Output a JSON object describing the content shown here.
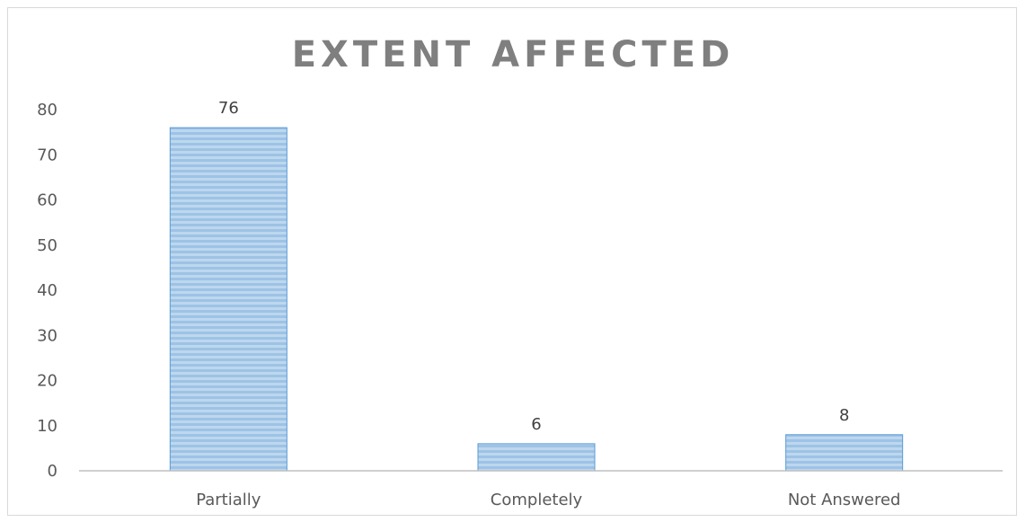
{
  "chart_data": {
    "type": "bar",
    "title": "EXTENT AFFECTED",
    "categories": [
      "Partially",
      "Completely",
      "Not Answered"
    ],
    "values": [
      76,
      6,
      8
    ],
    "data_labels": [
      "76",
      "6",
      "8"
    ],
    "yticks": [
      "0",
      "10",
      "20",
      "30",
      "40",
      "50",
      "60",
      "70",
      "80"
    ],
    "ylim": [
      0,
      80
    ],
    "grid": false,
    "legend": "none",
    "bar_color": "#9dc3e6",
    "bar_stripe_color": "#bdd7ee",
    "bar_edge_color": "#5b9bd5"
  }
}
